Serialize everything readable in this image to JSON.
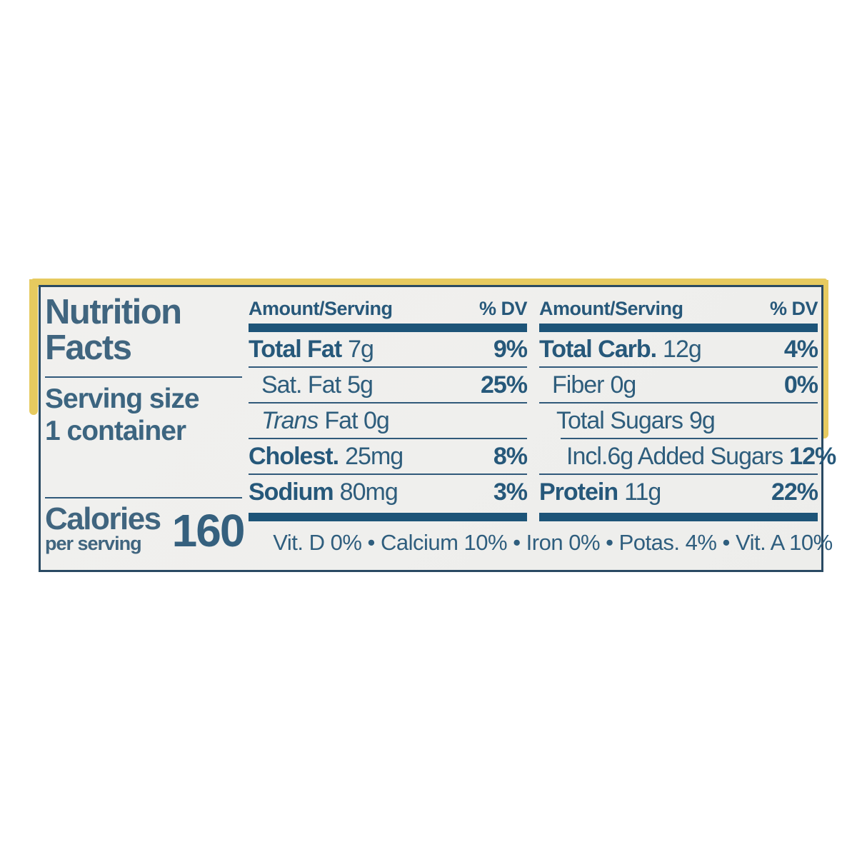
{
  "colors": {
    "page_bg": "#ffffff",
    "label_bg": "#f0efed",
    "label_border": "#2a4a63",
    "header_bar": "#1d5478",
    "rule": "#30597a",
    "title_text": "#40657f",
    "row_text": "#2e5d7c",
    "bold_text": "#26587a",
    "package_edge_yellow": "#e6ca5f"
  },
  "label": {
    "title_line1": "Nutrition",
    "title_line2": "Facts",
    "serving": {
      "size_label": "Serving size",
      "size_value": "1 container"
    },
    "calories": {
      "label": "Calories",
      "sublabel": "per serving",
      "value": "160"
    },
    "columns": [
      {
        "header_amount": "Amount/Serving",
        "header_dv": "% DV",
        "rows": [
          {
            "name": "Total Fat",
            "amount": "7g",
            "dv": "9%"
          },
          {
            "name": "Sat. Fat",
            "amount": "5g",
            "dv": "25%"
          },
          {
            "name": "Trans",
            "amount": "Fat 0g",
            "dv": ""
          },
          {
            "name": "Cholest.",
            "amount": "25mg",
            "dv": "8%"
          },
          {
            "name": "Sodium",
            "amount": "80mg",
            "dv": "3%"
          }
        ]
      },
      {
        "header_amount": "Amount/Serving",
        "header_dv": "% DV",
        "rows": [
          {
            "name": "Total Carb.",
            "amount": "12g",
            "dv": "4%"
          },
          {
            "name": "Fiber",
            "amount": "0g",
            "dv": "0%"
          },
          {
            "name": "Total Sugars",
            "amount": "9g",
            "dv": ""
          },
          {
            "name": "Incl.6g Added Sugars",
            "amount": "",
            "dv": "12%"
          },
          {
            "name": "Protein",
            "amount": "11g",
            "dv": "22%"
          }
        ]
      }
    ],
    "micronutrients": "Vit. D 0% • Calcium 10% • Iron 0% • Potas. 4% • Vit. A 10%"
  }
}
